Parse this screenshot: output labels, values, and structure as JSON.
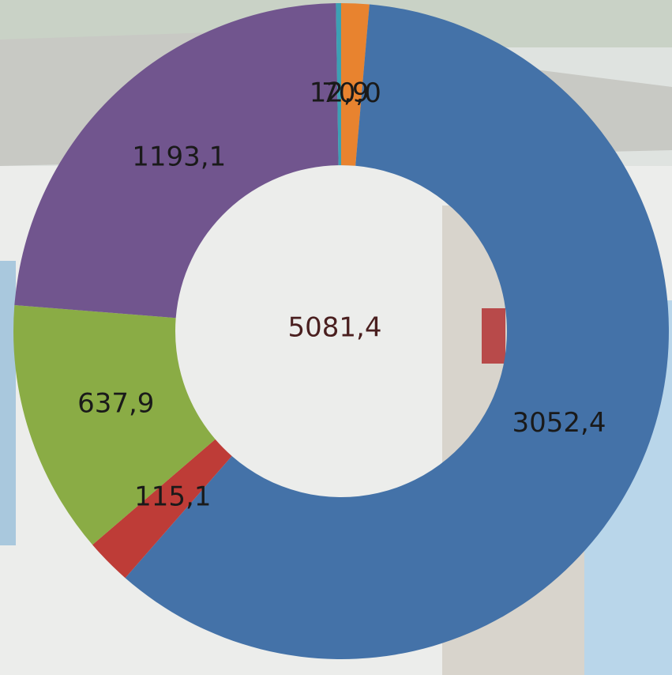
{
  "chart_data": {
    "type": "donut",
    "categories": [
      null,
      null,
      null,
      null,
      null,
      null
    ],
    "series": [
      {
        "name": null,
        "values": [
          70.0,
          3052.4,
          115.1,
          637.9,
          1193.1,
          12.9
        ],
        "value_labels": [
          "70,0",
          "3052,4",
          "115,1",
          "637,9",
          "1193,1",
          "12,9"
        ],
        "colors": [
          "#e8832f",
          "#4472a8",
          "#be3c37",
          "#8aac45",
          "#71558e",
          "#3ca0b4"
        ]
      }
    ],
    "total": {
      "value": 5081.4,
      "label": "5081,4"
    }
  }
}
